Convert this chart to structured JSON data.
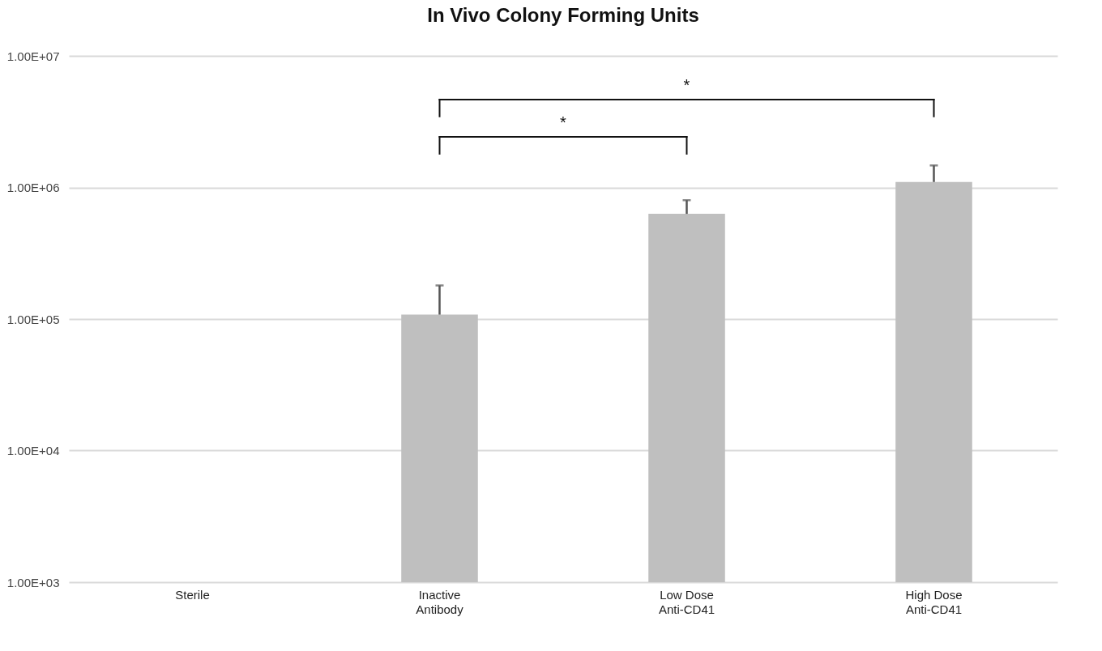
{
  "chart_data": {
    "type": "bar",
    "title": "In Vivo Colony Forming Units",
    "categories": [
      "Sterile",
      "Inactive\nAntibody",
      "Low Dose\nAnti-CD41",
      "High Dose\nAnti-CD41"
    ],
    "values": [
      null,
      108000,
      630000,
      1100000
    ],
    "errors": [
      null,
      [
        108000,
        180000
      ],
      [
        630000,
        800000
      ],
      [
        1100000,
        1470000
      ]
    ],
    "color": "#bfbfbf",
    "log": true,
    "ylim": [
      1000,
      10000000
    ],
    "yticks": [
      {
        "value": 1000,
        "label": "1.00E+03"
      },
      {
        "value": 10000,
        "label": "1.00E+04"
      },
      {
        "value": 100000,
        "label": "1.00E+05"
      },
      {
        "value": 1000000,
        "label": "1.00E+06"
      },
      {
        "value": 10000000,
        "label": "1.00E+07"
      }
    ],
    "grid": "y",
    "annotations": [
      "*",
      "*"
    ]
  }
}
